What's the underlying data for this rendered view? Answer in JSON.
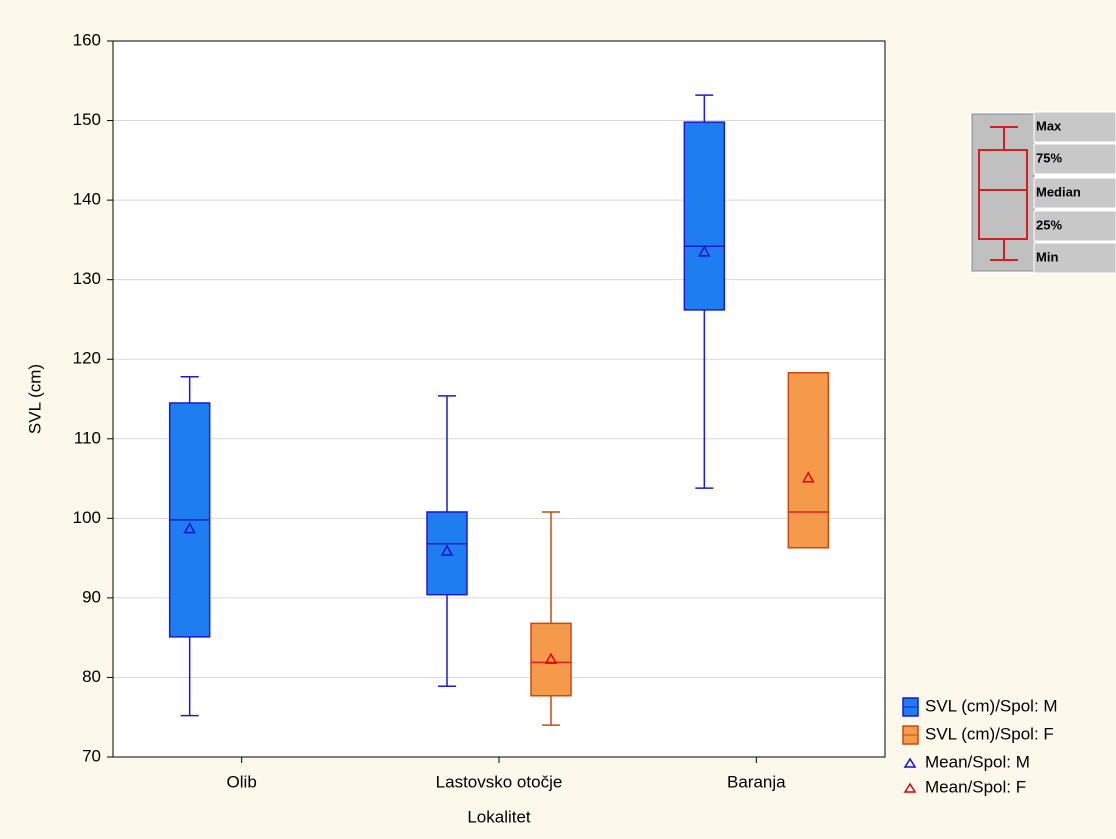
{
  "chart_data": {
    "type": "box",
    "x_label": "Lokalitet",
    "y_label": "SVL (cm)",
    "categories": [
      "Olib",
      "Lastovsko otočje",
      "Baranja"
    ],
    "ylim": [
      70,
      160
    ],
    "yticks": [
      70,
      80,
      90,
      100,
      110,
      120,
      130,
      140,
      150,
      160
    ],
    "grid": true,
    "series": [
      {
        "name": "SVL (cm)/Spol: M",
        "mean_name": "Mean/Spol: M",
        "color": "#1e7ef0",
        "edge": "#1a1acf",
        "mean_color": "#1010d0",
        "min": [
          75.2,
          78.9,
          103.8
        ],
        "q1": [
          85.1,
          90.4,
          126.2
        ],
        "median": [
          99.8,
          96.8,
          134.2
        ],
        "q3": [
          114.5,
          100.8,
          149.8
        ],
        "max": [
          117.8,
          115.4,
          153.2
        ],
        "mean": [
          98.7,
          95.9,
          133.5
        ]
      },
      {
        "name": "SVL (cm)/Spol: F",
        "mean_name": "Mean/Spol: F",
        "color": "#f59a4a",
        "edge": "#c84a10",
        "mean_color": "#e00000",
        "min": [
          null,
          74.0,
          96.3
        ],
        "q1": [
          null,
          77.7,
          96.3
        ],
        "median": [
          null,
          81.9,
          100.8
        ],
        "q3": [
          null,
          86.8,
          118.3
        ],
        "max": [
          null,
          100.8,
          118.3
        ],
        "mean": [
          null,
          82.3,
          105.1
        ]
      }
    ],
    "box_key": [
      "Max",
      "75%",
      "Median",
      "25%",
      "Min"
    ],
    "legend": "bottom-right"
  }
}
